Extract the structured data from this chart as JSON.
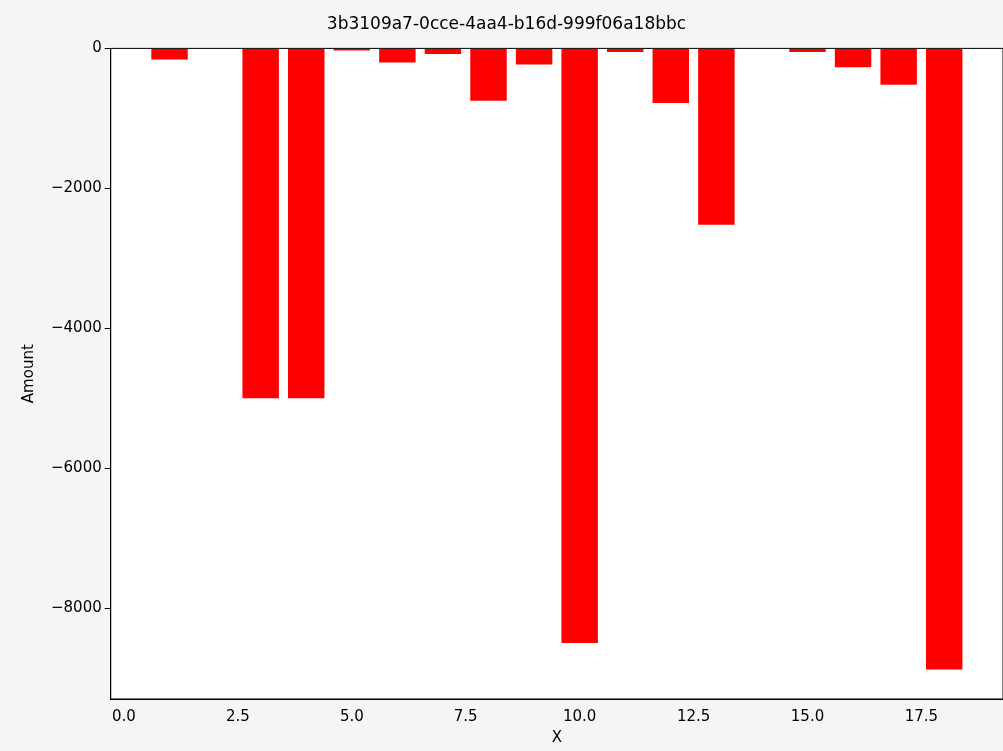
{
  "chart_data": {
    "type": "bar",
    "title": "3b3109a7-0cce-4aa4-b16d-999f06a18bbc",
    "xlabel": "X",
    "ylabel": "Amount",
    "x": [
      1,
      3,
      4,
      5,
      6,
      7,
      8,
      9,
      10,
      11,
      12,
      13,
      15,
      16,
      17,
      18
    ],
    "values": [
      -160,
      -5000,
      -5000,
      -30,
      -200,
      -80,
      -750,
      -230,
      -8500,
      -50,
      -780,
      -2520,
      -50,
      -270,
      -520,
      -8880
    ],
    "color": "#ff0000",
    "xlim": [
      -0.29,
      19.29
    ],
    "xticks": [
      {
        "value": 0,
        "label": "0.0"
      },
      {
        "value": 2.5,
        "label": "2.5"
      },
      {
        "value": 5,
        "label": "5.0"
      },
      {
        "value": 7.5,
        "label": "7.5"
      },
      {
        "value": 10,
        "label": "10.0"
      },
      {
        "value": 12.5,
        "label": "12.5"
      },
      {
        "value": 15,
        "label": "15.0"
      },
      {
        "value": 17.5,
        "label": "17.5"
      }
    ],
    "ylim": [
      -9300,
      0
    ],
    "yticks": [
      {
        "value": -8000,
        "label": "−8000"
      },
      {
        "value": -6000,
        "label": "−6000"
      },
      {
        "value": -4000,
        "label": "−4000"
      },
      {
        "value": -2000,
        "label": "−2000"
      },
      0
    ],
    "grid": false,
    "legend": false
  }
}
